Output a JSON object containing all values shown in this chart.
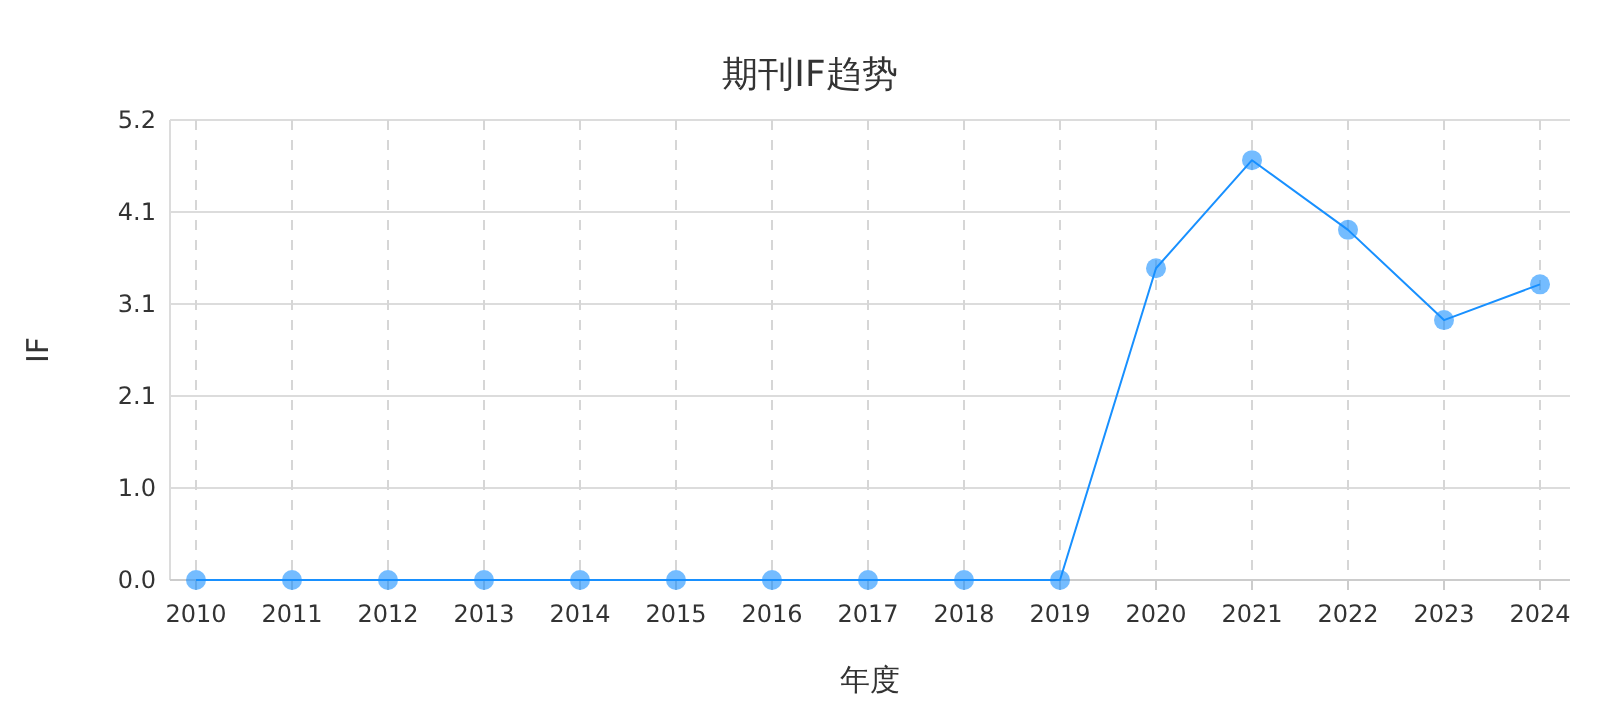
{
  "chart_data": {
    "type": "line",
    "title": "期刊IF趋势",
    "xlabel": "年度",
    "ylabel": "IF",
    "categories": [
      "2010",
      "2011",
      "2012",
      "2013",
      "2014",
      "2015",
      "2016",
      "2017",
      "2018",
      "2019",
      "2020",
      "2021",
      "2022",
      "2023",
      "2024"
    ],
    "series": [
      {
        "color": "#1890ff",
        "values": [
          0,
          0,
          0,
          0,
          0,
          0,
          0,
          0,
          0,
          0,
          3.49,
          4.7,
          3.92,
          2.91,
          3.31
        ]
      }
    ],
    "ylim": [
      0,
      5.15
    ],
    "yticks": [
      {
        "value": 0,
        "label": "0.0"
      },
      {
        "value": 1.03,
        "label": "1.0"
      },
      {
        "value": 2.06,
        "label": "2.1"
      },
      {
        "value": 3.09,
        "label": "3.1"
      },
      {
        "value": 4.12,
        "label": "4.1"
      },
      {
        "value": 5.15,
        "label": "5.2"
      }
    ],
    "grid": true,
    "marker": "circle",
    "line_style": "solid"
  }
}
